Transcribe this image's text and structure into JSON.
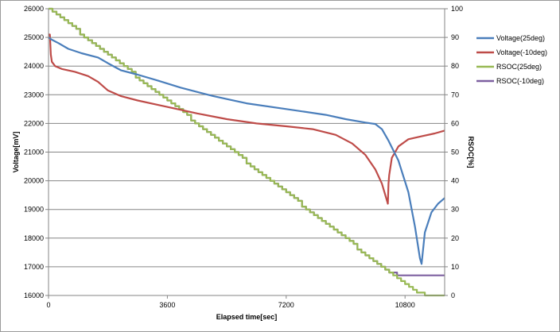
{
  "chart_data": {
    "type": "line",
    "xlabel": "Elapsed time[sec]",
    "ylabel": "Voltage[mV]",
    "y2label": "RSOC[%]",
    "x_ticks": [
      0,
      3600,
      7200,
      10800
    ],
    "xlim": [
      0,
      12000
    ],
    "ylim": [
      16000,
      26000
    ],
    "y_ticks": [
      16000,
      17000,
      18000,
      19000,
      20000,
      21000,
      22000,
      23000,
      24000,
      25000,
      26000
    ],
    "y2lim": [
      0,
      100
    ],
    "y2_ticks": [
      0,
      10,
      20,
      30,
      40,
      50,
      60,
      70,
      80,
      90,
      100
    ],
    "grid": "horizontal major gridlines",
    "legend_position": "right",
    "series": [
      {
        "name": "Voltage(25deg)",
        "axis": "left",
        "color": "#4a7ebb",
        "x": [
          0,
          100,
          300,
          600,
          1000,
          1500,
          1800,
          2200,
          2700,
          3300,
          4000,
          5000,
          6000,
          7200,
          8400,
          9000,
          9600,
          9900,
          10100,
          10300,
          10600,
          10900,
          11100,
          11250,
          11300,
          11400,
          11600,
          11800,
          12000
        ],
        "values": [
          25000,
          24920,
          24800,
          24600,
          24450,
          24300,
          24100,
          23850,
          23700,
          23500,
          23250,
          22950,
          22700,
          22500,
          22300,
          22150,
          22030,
          21980,
          21800,
          21400,
          20700,
          19600,
          18400,
          17300,
          17100,
          18200,
          18900,
          19200,
          19400
        ]
      },
      {
        "name": "Voltage(-10deg)",
        "axis": "left",
        "color": "#be4b48",
        "x": [
          0,
          40,
          70,
          100,
          200,
          400,
          800,
          1200,
          1500,
          1800,
          2200,
          2700,
          3300,
          3900,
          4500,
          5400,
          6300,
          7200,
          8000,
          8700,
          9200,
          9600,
          9900,
          10100,
          10280,
          10300,
          10320,
          10400,
          10600,
          10900,
          11300,
          11700,
          12000
        ],
        "values": [
          25100,
          25100,
          24400,
          24150,
          24000,
          23900,
          23800,
          23650,
          23450,
          23150,
          22950,
          22800,
          22650,
          22500,
          22350,
          22150,
          22000,
          21900,
          21800,
          21600,
          21300,
          20900,
          20400,
          19900,
          19200,
          19900,
          20200,
          20800,
          21200,
          21450,
          21550,
          21650,
          21750
        ]
      },
      {
        "name": "RSOC(25deg)",
        "axis": "right",
        "color": "#98b954",
        "x": [
          0,
          10200,
          10560,
          10800,
          11000,
          11200,
          11400,
          11600,
          12000
        ],
        "values": [
          100,
          9,
          6,
          4,
          2,
          1,
          0,
          0,
          0
        ]
      },
      {
        "name": "RSOC(-10deg)",
        "axis": "right",
        "color": "#7d60a0",
        "x": [
          0,
          10200,
          10560,
          10800,
          12000
        ],
        "values": [
          100,
          9,
          7,
          7,
          7
        ]
      }
    ]
  }
}
